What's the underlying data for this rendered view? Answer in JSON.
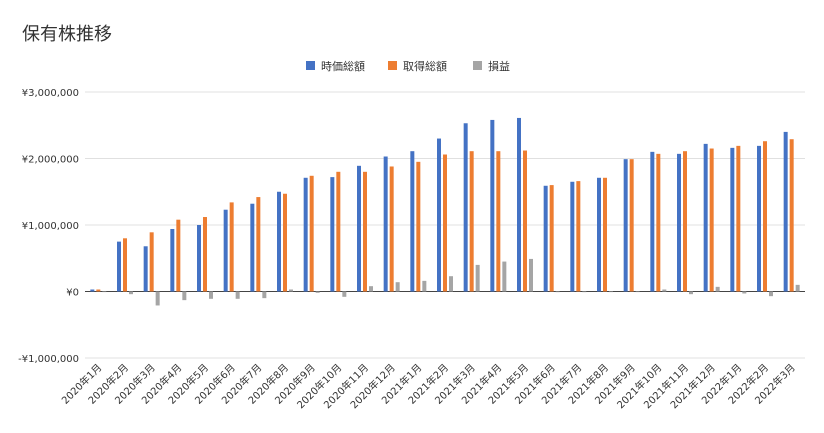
{
  "chart_data": {
    "type": "bar",
    "title": "保有株推移",
    "xlabel": "",
    "ylabel": "",
    "ylim": [
      -1000000,
      3000000
    ],
    "yticks": [
      -1000000,
      0,
      1000000,
      2000000,
      3000000
    ],
    "ytick_labels": [
      "-¥1,000,000",
      "¥0",
      "¥1,000,000",
      "¥2,000,000",
      "¥3,000,000"
    ],
    "grid": true,
    "legend_position": "top",
    "categories": [
      "2020年1月",
      "2020年2月",
      "2020年3月",
      "2020年4月",
      "2020年5月",
      "2020年6月",
      "2020年7月",
      "2020年8月",
      "2020年9月",
      "2020年10月",
      "2020年11月",
      "2020年12月",
      "2021年1月",
      "2021年2月",
      "2021年3月",
      "2021年4月",
      "2021年5月",
      "2021年6月",
      "2021年7月",
      "2021年8月",
      "2021年9月",
      "2021年10月",
      "2021年11月",
      "2021年12月",
      "2022年1月",
      "2022年2月",
      "2022年3月"
    ],
    "series": [
      {
        "name": "時価総額",
        "color": "#4472c4",
        "values": [
          30000,
          750000,
          680000,
          940000,
          1000000,
          1230000,
          1320000,
          1500000,
          1710000,
          1720000,
          1890000,
          2030000,
          2110000,
          2300000,
          2530000,
          2580000,
          2610000,
          1590000,
          1650000,
          1710000,
          1990000,
          2100000,
          2070000,
          2220000,
          2160000,
          2190000,
          2400000
        ]
      },
      {
        "name": "取得総額",
        "color": "#ed7d31",
        "values": [
          30000,
          800000,
          890000,
          1080000,
          1120000,
          1340000,
          1420000,
          1470000,
          1740000,
          1800000,
          1800000,
          1880000,
          1950000,
          2060000,
          2110000,
          2110000,
          2120000,
          1600000,
          1660000,
          1710000,
          1990000,
          2070000,
          2110000,
          2150000,
          2190000,
          2260000,
          2290000
        ]
      },
      {
        "name": "損益",
        "color": "#a5a5a5",
        "values": [
          0,
          -40000,
          -210000,
          -130000,
          -110000,
          -110000,
          -100000,
          30000,
          -20000,
          -80000,
          80000,
          140000,
          160000,
          230000,
          400000,
          450000,
          490000,
          -10000,
          -10000,
          0,
          0,
          30000,
          -40000,
          70000,
          -30000,
          -70000,
          100000
        ]
      }
    ]
  }
}
